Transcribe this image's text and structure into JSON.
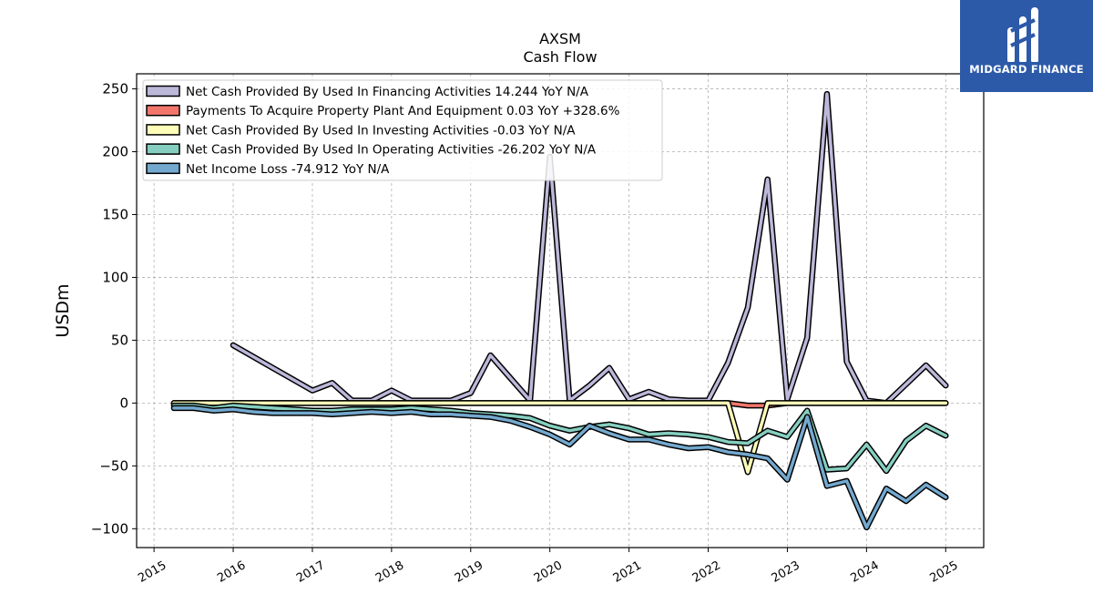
{
  "chart_data": {
    "type": "line",
    "title": "AXSM",
    "subtitle": "Cash Flow",
    "xlabel": "",
    "ylabel": "USDm",
    "ylim": [
      -115,
      262
    ],
    "xlim": [
      2014.78,
      2025.48
    ],
    "yticks": [
      {
        "value": 250,
        "label": "250"
      },
      {
        "value": 200,
        "label": "200"
      },
      {
        "value": 150,
        "label": "150"
      },
      {
        "value": 100,
        "label": "100"
      },
      {
        "value": 50,
        "label": "50"
      },
      {
        "value": 0,
        "label": "0"
      },
      {
        "value": -50,
        "label": "−50"
      },
      {
        "value": -100,
        "label": "−100"
      }
    ],
    "xticks": [
      "2015",
      "2016",
      "2017",
      "2018",
      "2019",
      "2020",
      "2021",
      "2022",
      "2023",
      "2024",
      "2025"
    ],
    "grid": true,
    "legend_position": "top-left",
    "series": [
      {
        "name": "Net Cash Provided By Used In Financing Activities",
        "legend": "Net Cash Provided By Used In Financing Activities  14.244 YoY N/A",
        "color": "#bcb8da",
        "x": [
          2016.0,
          2016.5,
          2017.0,
          2017.25,
          2017.5,
          2017.75,
          2018.0,
          2018.25,
          2018.5,
          2018.75,
          2019.0,
          2019.25,
          2019.5,
          2019.75,
          2020.0,
          2020.25,
          2020.5,
          2020.75,
          2021.0,
          2021.25,
          2021.5,
          2021.75,
          2022.0,
          2022.25,
          2022.5,
          2022.75,
          2023.0,
          2023.25,
          2023.5,
          2023.75,
          2024.0,
          2024.25,
          2024.5,
          2024.75,
          2025.0
        ],
        "y": [
          46,
          28,
          10,
          16,
          2,
          2,
          10,
          2,
          2,
          2,
          8,
          38,
          20,
          2,
          196,
          2,
          14,
          28,
          3,
          9,
          3,
          2,
          2,
          32,
          76,
          178,
          3,
          52,
          246,
          33,
          2,
          0,
          15,
          30,
          14
        ]
      },
      {
        "name": "Payments To Acquire Property Plant And Equipment",
        "legend": "Payments To Acquire Property Plant And Equipment  0.03 YoY +328.6%",
        "color": "#f2766b",
        "x": [
          2015.25,
          2016.0,
          2017.0,
          2018.0,
          2019.0,
          2020.0,
          2021.0,
          2022.0,
          2022.25,
          2022.5,
          2022.75,
          2023.0,
          2024.0,
          2025.0
        ],
        "y": [
          0,
          0,
          0,
          0,
          0,
          0,
          0,
          0,
          0,
          -2,
          -2,
          0,
          0,
          0
        ]
      },
      {
        "name": "Net Cash Provided By Used In Investing Activities",
        "legend": "Net Cash Provided By Used In Investing Activities  -0.03 YoY N/A",
        "color": "#fdfdb8",
        "x": [
          2015.25,
          2016.0,
          2017.0,
          2018.0,
          2019.0,
          2020.0,
          2021.0,
          2022.0,
          2022.25,
          2022.5,
          2022.75,
          2023.0,
          2024.0,
          2025.0
        ],
        "y": [
          0,
          0,
          0,
          0,
          0,
          0,
          0,
          0,
          0,
          -55,
          0,
          0,
          0,
          0
        ]
      },
      {
        "name": "Net Cash Provided By Used In Operating Activities",
        "legend": "Net Cash Provided By Used In Operating Activities  -26.202 YoY N/A",
        "color": "#86cfc0",
        "x": [
          2015.25,
          2015.5,
          2015.75,
          2016.0,
          2016.25,
          2016.5,
          2016.75,
          2017.0,
          2017.25,
          2017.5,
          2017.75,
          2018.0,
          2018.25,
          2018.5,
          2018.75,
          2019.0,
          2019.25,
          2019.5,
          2019.75,
          2020.0,
          2020.25,
          2020.5,
          2020.75,
          2021.0,
          2021.25,
          2021.5,
          2021.75,
          2022.0,
          2022.25,
          2022.5,
          2022.75,
          2023.0,
          2023.25,
          2023.5,
          2023.75,
          2024.0,
          2024.25,
          2024.5,
          2024.75,
          2025.0
        ],
        "y": [
          -2,
          -2,
          -4,
          -2,
          -3,
          -4,
          -5,
          -6,
          -6,
          -5,
          -5,
          -5,
          -4,
          -5,
          -6,
          -8,
          -9,
          -10,
          -12,
          -18,
          -22,
          -19,
          -17,
          -20,
          -25,
          -24,
          -25,
          -27,
          -31,
          -32,
          -22,
          -27,
          -6,
          -53,
          -52,
          -33,
          -54,
          -30,
          -18,
          -26
        ]
      },
      {
        "name": "Net Income Loss",
        "legend": "Net Income Loss  -74.912 YoY N/A",
        "color": "#74a9cf",
        "x": [
          2015.25,
          2015.5,
          2015.75,
          2016.0,
          2016.25,
          2016.5,
          2016.75,
          2017.0,
          2017.25,
          2017.5,
          2017.75,
          2018.0,
          2018.25,
          2018.5,
          2018.75,
          2019.0,
          2019.25,
          2019.5,
          2019.75,
          2020.0,
          2020.25,
          2020.5,
          2020.75,
          2021.0,
          2021.25,
          2021.5,
          2021.75,
          2022.0,
          2022.25,
          2022.5,
          2022.75,
          2023.0,
          2023.25,
          2023.5,
          2023.75,
          2024.0,
          2024.25,
          2024.5,
          2024.75,
          2025.0
        ],
        "y": [
          -4,
          -4,
          -6,
          -5,
          -7,
          -8,
          -8,
          -8,
          -9,
          -8,
          -7,
          -8,
          -7,
          -9,
          -9,
          -10,
          -11,
          -14,
          -19,
          -25,
          -33,
          -18,
          -24,
          -29,
          -29,
          -33,
          -36,
          -35,
          -39,
          -41,
          -44,
          -61,
          -11,
          -66,
          -62,
          -99,
          -68,
          -78,
          -65,
          -75
        ]
      }
    ]
  },
  "logo": {
    "brand": "MIDGARD FINANCE",
    "icon": "stylized-m-bars-icon",
    "background": "#2c5aa8"
  }
}
